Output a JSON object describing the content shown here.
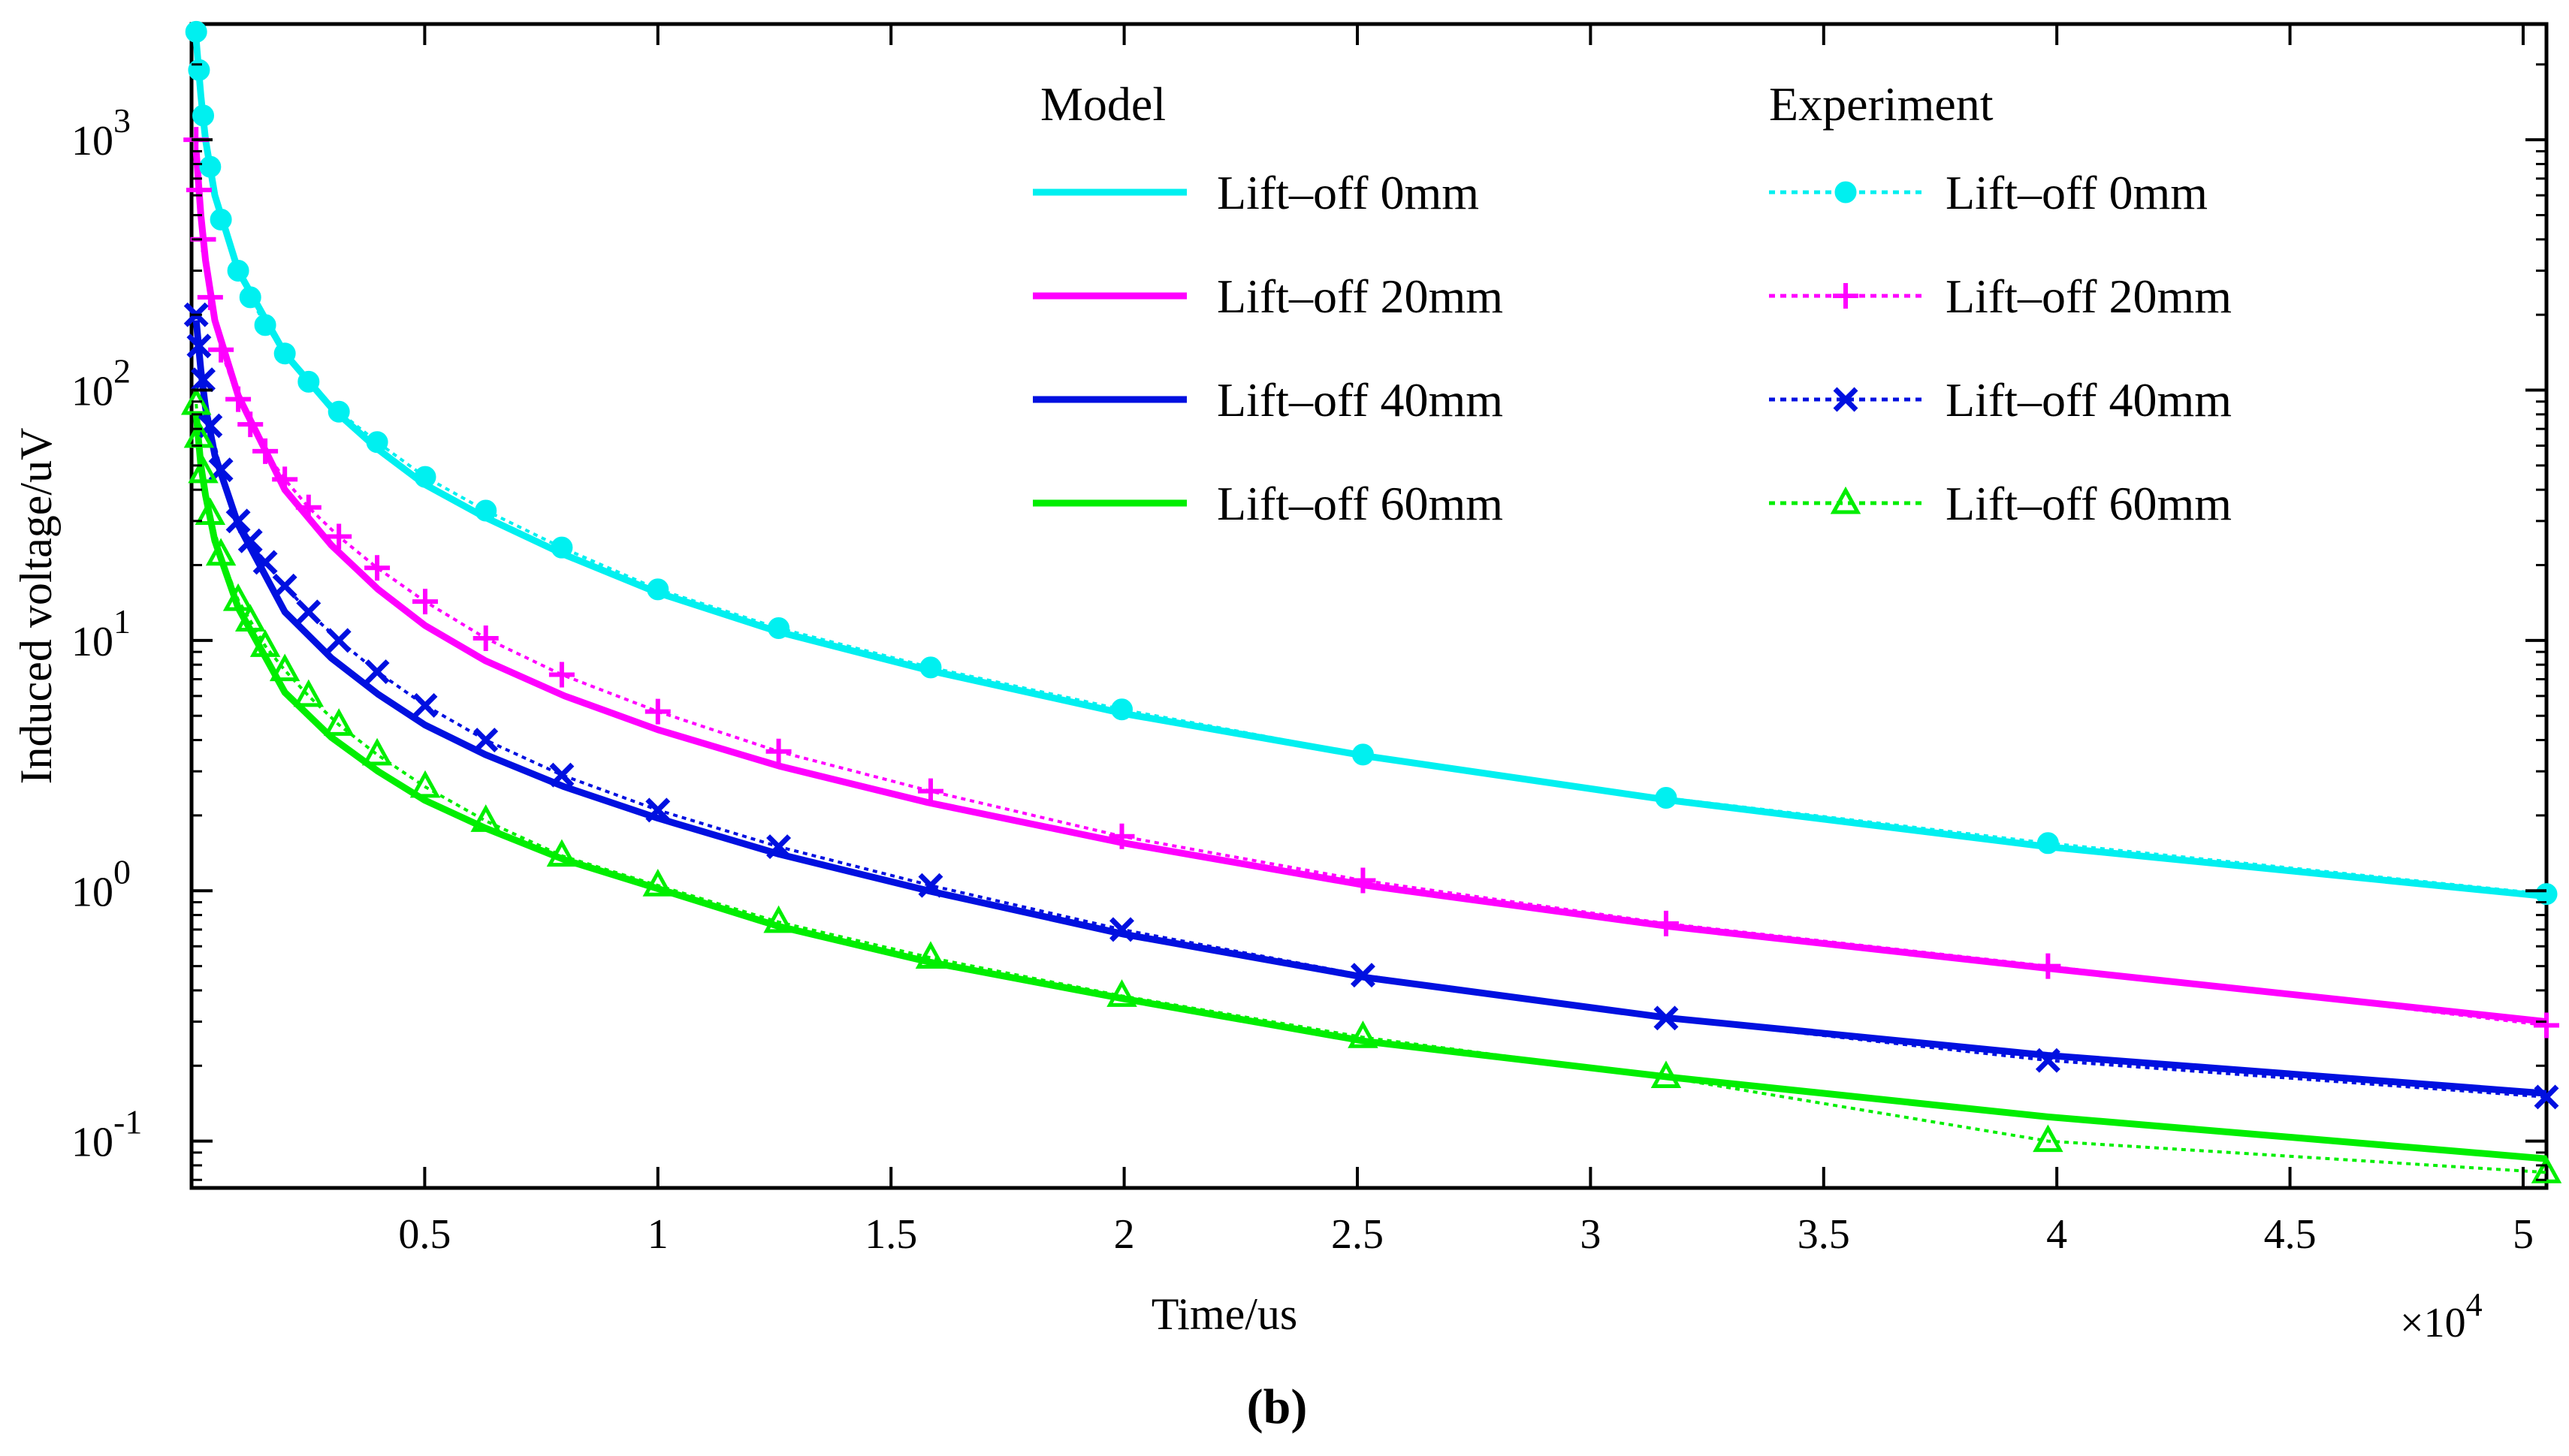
{
  "chart_data": {
    "type": "line",
    "title": "",
    "xlabel": "Time/us",
    "ylabel": "Induced voltage/uV",
    "x_scale": "linear",
    "y_scale": "log",
    "x_multiplier": "×10",
    "x_multiplier_exp": "4",
    "xlim": [
      0,
      50500
    ],
    "ylim": [
      0.065,
      2900
    ],
    "x_ticks": [
      {
        "value": 5000,
        "label": "0.5"
      },
      {
        "value": 10000,
        "label": "1"
      },
      {
        "value": 15000,
        "label": "1.5"
      },
      {
        "value": 20000,
        "label": "2"
      },
      {
        "value": 25000,
        "label": "2.5"
      },
      {
        "value": 30000,
        "label": "3"
      },
      {
        "value": 35000,
        "label": "3.5"
      },
      {
        "value": 40000,
        "label": "4"
      },
      {
        "value": 45000,
        "label": "4.5"
      },
      {
        "value": 50000,
        "label": "5"
      }
    ],
    "y_ticks": [
      {
        "value": 0.1,
        "base": "10",
        "exp": "-1"
      },
      {
        "value": 1,
        "base": "10",
        "exp": "0"
      },
      {
        "value": 10,
        "base": "10",
        "exp": "1"
      },
      {
        "value": 100,
        "base": "10",
        "exp": "2"
      },
      {
        "value": 1000,
        "base": "10",
        "exp": "3"
      }
    ],
    "legend": {
      "placement": "top-right",
      "model_header": "Model",
      "experiment_header": "Experiment"
    },
    "series": [
      {
        "name": "Lift–off 0mm",
        "group": "Model",
        "color": "#00f0f0",
        "style": "solid",
        "marker": "none",
        "x": [
          100,
          200,
          300,
          500,
          1000,
          2000,
          3000,
          4000,
          5000,
          6300,
          8000,
          10000,
          12600,
          15800,
          20000,
          25200,
          31700,
          39800,
          50500
        ],
        "values": [
          2500,
          1500,
          1000,
          600,
          300,
          140,
          85,
          58,
          42,
          31,
          22,
          15.5,
          10.8,
          7.6,
          5.1,
          3.45,
          2.3,
          1.5,
          0.95
        ]
      },
      {
        "name": "Lift–off 20mm",
        "group": "Model",
        "color": "#ff00ff",
        "style": "solid",
        "marker": "none",
        "x": [
          100,
          200,
          300,
          500,
          1000,
          2000,
          3000,
          4000,
          5000,
          6300,
          8000,
          10000,
          12600,
          15800,
          20000,
          25200,
          31700,
          39800,
          50500
        ],
        "values": [
          900,
          500,
          330,
          190,
          95,
          40,
          24,
          16,
          11.5,
          8.3,
          6,
          4.4,
          3.15,
          2.25,
          1.55,
          1.05,
          0.72,
          0.49,
          0.3
        ]
      },
      {
        "name": "Lift–off 40mm",
        "group": "Model",
        "color": "#0010e0",
        "style": "solid",
        "marker": "none",
        "x": [
          100,
          200,
          300,
          500,
          1000,
          2000,
          3000,
          4000,
          5000,
          6300,
          8000,
          10000,
          12600,
          15800,
          20000,
          25200,
          31700,
          39800,
          50500
        ],
        "values": [
          190,
          120,
          85,
          55,
          29,
          13,
          8.5,
          6.1,
          4.6,
          3.5,
          2.6,
          1.95,
          1.4,
          1.0,
          0.67,
          0.45,
          0.31,
          0.22,
          0.155
        ]
      },
      {
        "name": "Lift–off 60mm",
        "group": "Model",
        "color": "#00ee00",
        "style": "solid",
        "marker": "none",
        "x": [
          100,
          200,
          300,
          500,
          1000,
          2000,
          3000,
          4000,
          5000,
          6300,
          8000,
          10000,
          12600,
          15800,
          20000,
          25200,
          31700,
          39800,
          50500
        ],
        "values": [
          80,
          50,
          38,
          25,
          13.5,
          6.2,
          4.1,
          3.0,
          2.3,
          1.78,
          1.33,
          1.02,
          0.72,
          0.52,
          0.37,
          0.25,
          0.18,
          0.125,
          0.085
        ]
      },
      {
        "name": "Lift–off 0mm",
        "group": "Experiment",
        "color": "#00f0f0",
        "style": "dotted",
        "marker": "circle",
        "x": [
          100,
          160,
          250,
          400,
          630,
          1000,
          1260,
          1580,
          2000,
          2510,
          3160,
          3980,
          5010,
          6310,
          7940,
          10000,
          12590,
          15850,
          19950,
          25120,
          31620,
          39810,
          50500
        ],
        "values": [
          2700,
          1900,
          1250,
          780,
          480,
          300,
          235,
          182,
          140,
          108,
          82,
          62,
          45,
          33,
          23.5,
          16,
          11.2,
          7.8,
          5.3,
          3.5,
          2.35,
          1.55,
          0.97
        ]
      },
      {
        "name": "Lift–off 20mm",
        "group": "Experiment",
        "color": "#ff00ff",
        "style": "dotted",
        "marker": "plus",
        "x": [
          100,
          160,
          250,
          400,
          630,
          1000,
          1260,
          1580,
          2000,
          2510,
          3160,
          3980,
          5010,
          6310,
          7940,
          10000,
          12590,
          15850,
          19950,
          25120,
          31620,
          39810,
          50500
        ],
        "values": [
          1000,
          630,
          400,
          235,
          145,
          92,
          73,
          57,
          44,
          34,
          26,
          19.5,
          14.3,
          10.2,
          7.3,
          5.2,
          3.6,
          2.5,
          1.65,
          1.1,
          0.74,
          0.5,
          0.29
        ]
      },
      {
        "name": "Lift–off 40mm",
        "group": "Experiment",
        "color": "#0010e0",
        "style": "dotted",
        "marker": "x",
        "x": [
          100,
          160,
          250,
          400,
          630,
          1000,
          1260,
          1580,
          2000,
          2510,
          3160,
          3980,
          5010,
          6310,
          7940,
          10000,
          12590,
          15850,
          19950,
          25120,
          31620,
          39810,
          50500
        ],
        "values": [
          200,
          150,
          110,
          72,
          48,
          30,
          25,
          20.5,
          16.5,
          13,
          10,
          7.5,
          5.5,
          4.0,
          2.9,
          2.1,
          1.5,
          1.05,
          0.7,
          0.46,
          0.31,
          0.21,
          0.15
        ]
      },
      {
        "name": "Lift–off 60mm",
        "group": "Experiment",
        "color": "#00ee00",
        "style": "dotted",
        "marker": "triangle",
        "x": [
          100,
          160,
          250,
          400,
          630,
          1000,
          1260,
          1580,
          2000,
          2510,
          3160,
          3980,
          5010,
          6310,
          7940,
          10000,
          12590,
          15850,
          19950,
          25120,
          31620,
          39810,
          50500
        ],
        "values": [
          88,
          65,
          47,
          32,
          22,
          14.5,
          12,
          9.5,
          7.6,
          6.0,
          4.6,
          3.5,
          2.6,
          1.9,
          1.38,
          1.05,
          0.75,
          0.54,
          0.38,
          0.26,
          0.18,
          0.1,
          0.075
        ]
      }
    ]
  },
  "caption": "(b)"
}
